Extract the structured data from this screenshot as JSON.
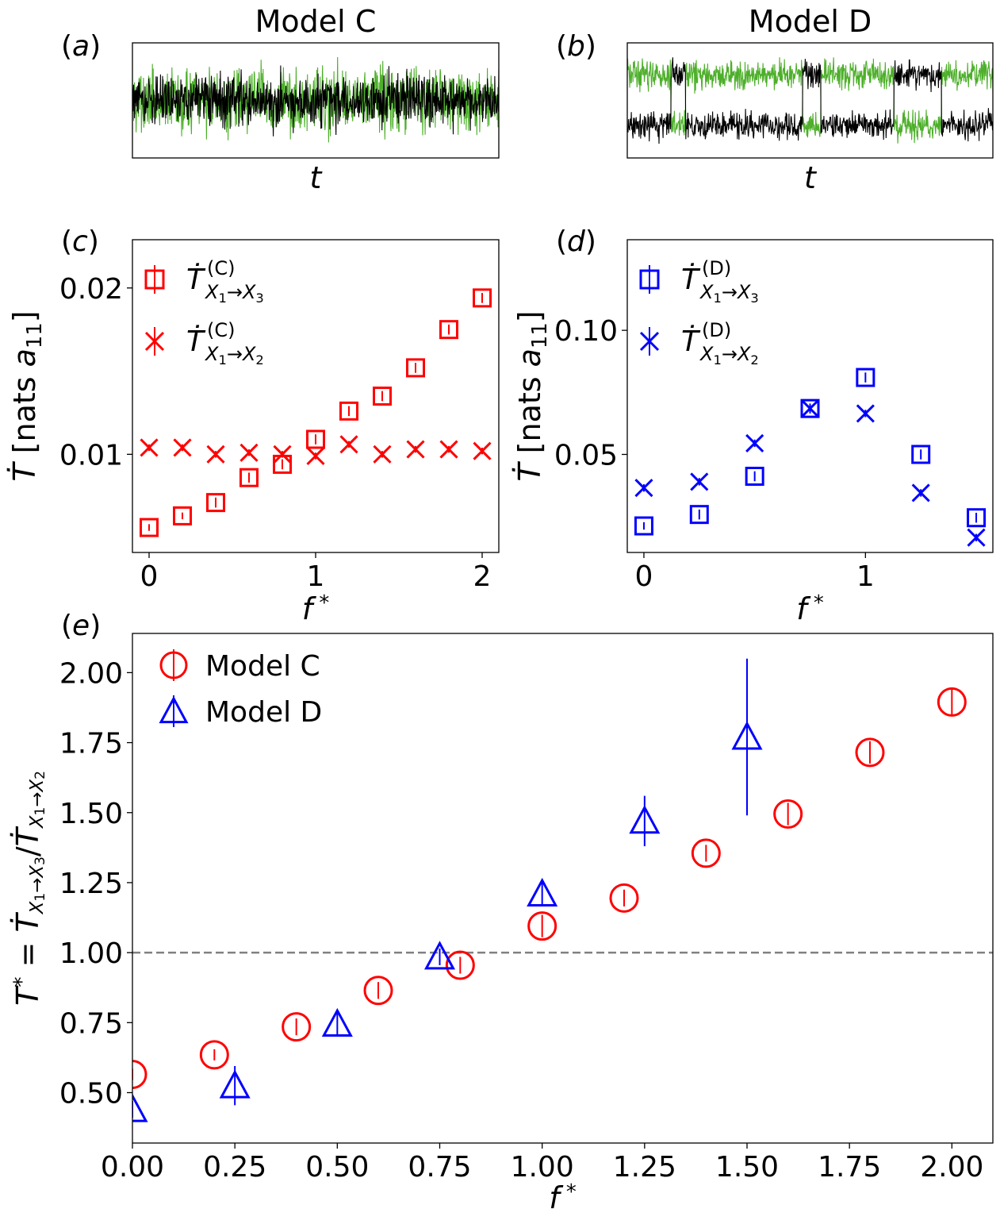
{
  "chart_data": [
    {
      "id": "a",
      "panel_label": "(a)",
      "type": "line",
      "title": "Model C",
      "xlabel": "t",
      "ylabel": "",
      "ticks": "none",
      "description_series": [
        {
          "color": "#4daf2a",
          "levels": [
            0.0
          ],
          "noise": 0.22
        },
        {
          "color": "#000000",
          "levels": [
            0.0
          ],
          "noise": 0.18
        }
      ],
      "ylim": [
        -1,
        1
      ]
    },
    {
      "id": "b",
      "panel_label": "(b)",
      "type": "line",
      "title": "Model D",
      "xlabel": "t",
      "ylabel": "",
      "ticks": "none",
      "description_series": [
        {
          "color": "#4daf2a",
          "switching": true
        },
        {
          "color": "#000000",
          "switching": true
        }
      ],
      "ylim": [
        -1,
        1
      ]
    },
    {
      "id": "c",
      "panel_label": "(c)",
      "type": "scatter",
      "xlabel": "f *",
      "ylabel": "Ṫ [nats a11]",
      "xlim": [
        -0.1,
        2.1
      ],
      "ylim": [
        0.0041,
        0.0229
      ],
      "xticks": [
        0,
        1,
        2
      ],
      "xtick_labels": [
        "0",
        "1",
        "2"
      ],
      "yticks": [
        0.01,
        0.02
      ],
      "ytick_labels": [
        "0.01",
        "0.02"
      ],
      "legend_position": "upper-left",
      "series": [
        {
          "name": "Ṫ(C) X1→X3",
          "marker": "square",
          "color": "#ff0000",
          "x": [
            0,
            0.2,
            0.4,
            0.6,
            0.8,
            1.0,
            1.2,
            1.4,
            1.6,
            1.8,
            2.0
          ],
          "y": [
            0.0056,
            0.0063,
            0.0071,
            0.0086,
            0.0094,
            0.0109,
            0.0126,
            0.0135,
            0.0152,
            0.0175,
            0.0194
          ],
          "err": [
            0.0002,
            0.0002,
            0.0003,
            0.0003,
            0.0003,
            0.0003,
            0.0003,
            0.0003,
            0.0003,
            0.0003,
            0.0003
          ]
        },
        {
          "name": "Ṫ(C) X1→X2",
          "marker": "x",
          "color": "#ff0000",
          "x": [
            0,
            0.2,
            0.4,
            0.6,
            0.8,
            1.0,
            1.2,
            1.4,
            1.6,
            1.8,
            2.0
          ],
          "y": [
            0.0104,
            0.0104,
            0.01,
            0.0101,
            0.01,
            0.0099,
            0.0106,
            0.01,
            0.0103,
            0.0103,
            0.0102
          ],
          "err": [
            0.0002,
            0.0002,
            0.0002,
            0.0002,
            0.0002,
            0.0002,
            0.0002,
            0.0002,
            0.0002,
            0.0002,
            0.0002
          ]
        }
      ]
    },
    {
      "id": "d",
      "panel_label": "(d)",
      "type": "scatter",
      "xlabel": "f *",
      "ylabel": "Ṫ [nats a11]",
      "xlim": [
        -0.075,
        1.575
      ],
      "ylim": [
        0.0105,
        0.1365
      ],
      "xticks": [
        0,
        1
      ],
      "xtick_labels": [
        "0",
        "1"
      ],
      "yticks": [
        0.05,
        0.1
      ],
      "ytick_labels": [
        "0.05",
        "0.10"
      ],
      "legend_position": "upper-left",
      "series": [
        {
          "name": "Ṫ(D) X1→X3",
          "marker": "square",
          "color": "#0000ff",
          "x": [
            0,
            0.25,
            0.5,
            0.75,
            1.0,
            1.25,
            1.5
          ],
          "y": [
            0.0212,
            0.0258,
            0.0412,
            0.0685,
            0.081,
            0.05,
            0.0245
          ],
          "err": [
            0.0015,
            0.002,
            0.002,
            0.002,
            0.002,
            0.002,
            0.002
          ]
        },
        {
          "name": "Ṫ(D) X1→X2",
          "marker": "x",
          "color": "#0000ff",
          "x": [
            0,
            0.25,
            0.5,
            0.75,
            1.0,
            1.25,
            1.5
          ],
          "y": [
            0.0365,
            0.039,
            0.0545,
            0.0685,
            0.0665,
            0.0345,
            0.0165
          ],
          "err": [
            0.0015,
            0.0015,
            0.0015,
            0.0015,
            0.0015,
            0.0015,
            0.0015
          ]
        }
      ]
    },
    {
      "id": "e",
      "panel_label": "(e)",
      "type": "scatter",
      "xlabel": "f *",
      "ylabel": "T* = ṪX1→X3 / ṪX1→X2",
      "xlim": [
        0.0,
        2.1
      ],
      "ylim": [
        0.32,
        2.14
      ],
      "xticks": [
        0.0,
        0.25,
        0.5,
        0.75,
        1.0,
        1.25,
        1.5,
        1.75,
        2.0
      ],
      "xtick_labels": [
        "0.00",
        "0.25",
        "0.50",
        "0.75",
        "1.00",
        "1.25",
        "1.50",
        "1.75",
        "2.00"
      ],
      "yticks": [
        0.5,
        0.75,
        1.0,
        1.25,
        1.5,
        1.75,
        2.0
      ],
      "ytick_labels": [
        "0.50",
        "0.75",
        "1.00",
        "1.25",
        "1.50",
        "1.75",
        "2.00"
      ],
      "reference_line": {
        "y": 1.0,
        "style": "dashed",
        "color": "#808080"
      },
      "legend_position": "upper-left",
      "series": [
        {
          "name": "Model C",
          "marker": "circle",
          "color": "#ff0000",
          "x": [
            0,
            0.2,
            0.4,
            0.6,
            0.8,
            1.0,
            1.2,
            1.4,
            1.6,
            1.8,
            2.0
          ],
          "y": [
            0.565,
            0.635,
            0.735,
            0.865,
            0.955,
            1.095,
            1.195,
            1.355,
            1.495,
            1.715,
            1.895
          ],
          "err": [
            0.02,
            0.02,
            0.03,
            0.03,
            0.03,
            0.04,
            0.03,
            0.03,
            0.04,
            0.04,
            0.05
          ]
        },
        {
          "name": "Model D",
          "marker": "triangle",
          "color": "#0000ff",
          "x": [
            0,
            0.25,
            0.5,
            0.75,
            1.0,
            1.25,
            1.5
          ],
          "y": [
            0.44,
            0.525,
            0.745,
            0.985,
            1.21,
            1.47,
            1.77
          ],
          "err": [
            0.03,
            0.07,
            0.04,
            0.03,
            0.04,
            0.09,
            0.28
          ]
        }
      ]
    }
  ]
}
